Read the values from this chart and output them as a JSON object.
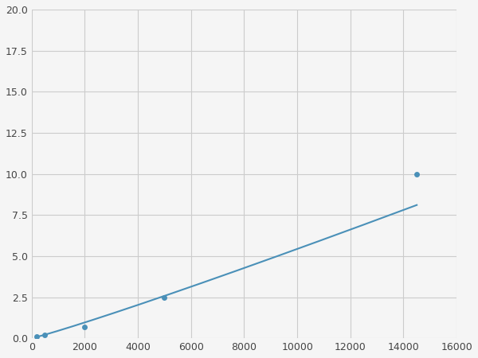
{
  "x_points": [
    200,
    500,
    2000,
    5000,
    14500
  ],
  "y_points": [
    0.1,
    0.2,
    0.7,
    2.5,
    10.0
  ],
  "line_color": "#4a90b8",
  "xlim": [
    0,
    16000
  ],
  "ylim": [
    0,
    20.0
  ],
  "xticks": [
    0,
    2000,
    4000,
    6000,
    8000,
    10000,
    12000,
    14000,
    16000
  ],
  "yticks": [
    0.0,
    2.5,
    5.0,
    7.5,
    10.0,
    12.5,
    15.0,
    17.5,
    20.0
  ],
  "grid_color": "#cccccc",
  "background_color": "#f5f5f5",
  "figsize": [
    6.0,
    4.5
  ],
  "dpi": 100,
  "linewidth": 1.5,
  "markersize": 5
}
